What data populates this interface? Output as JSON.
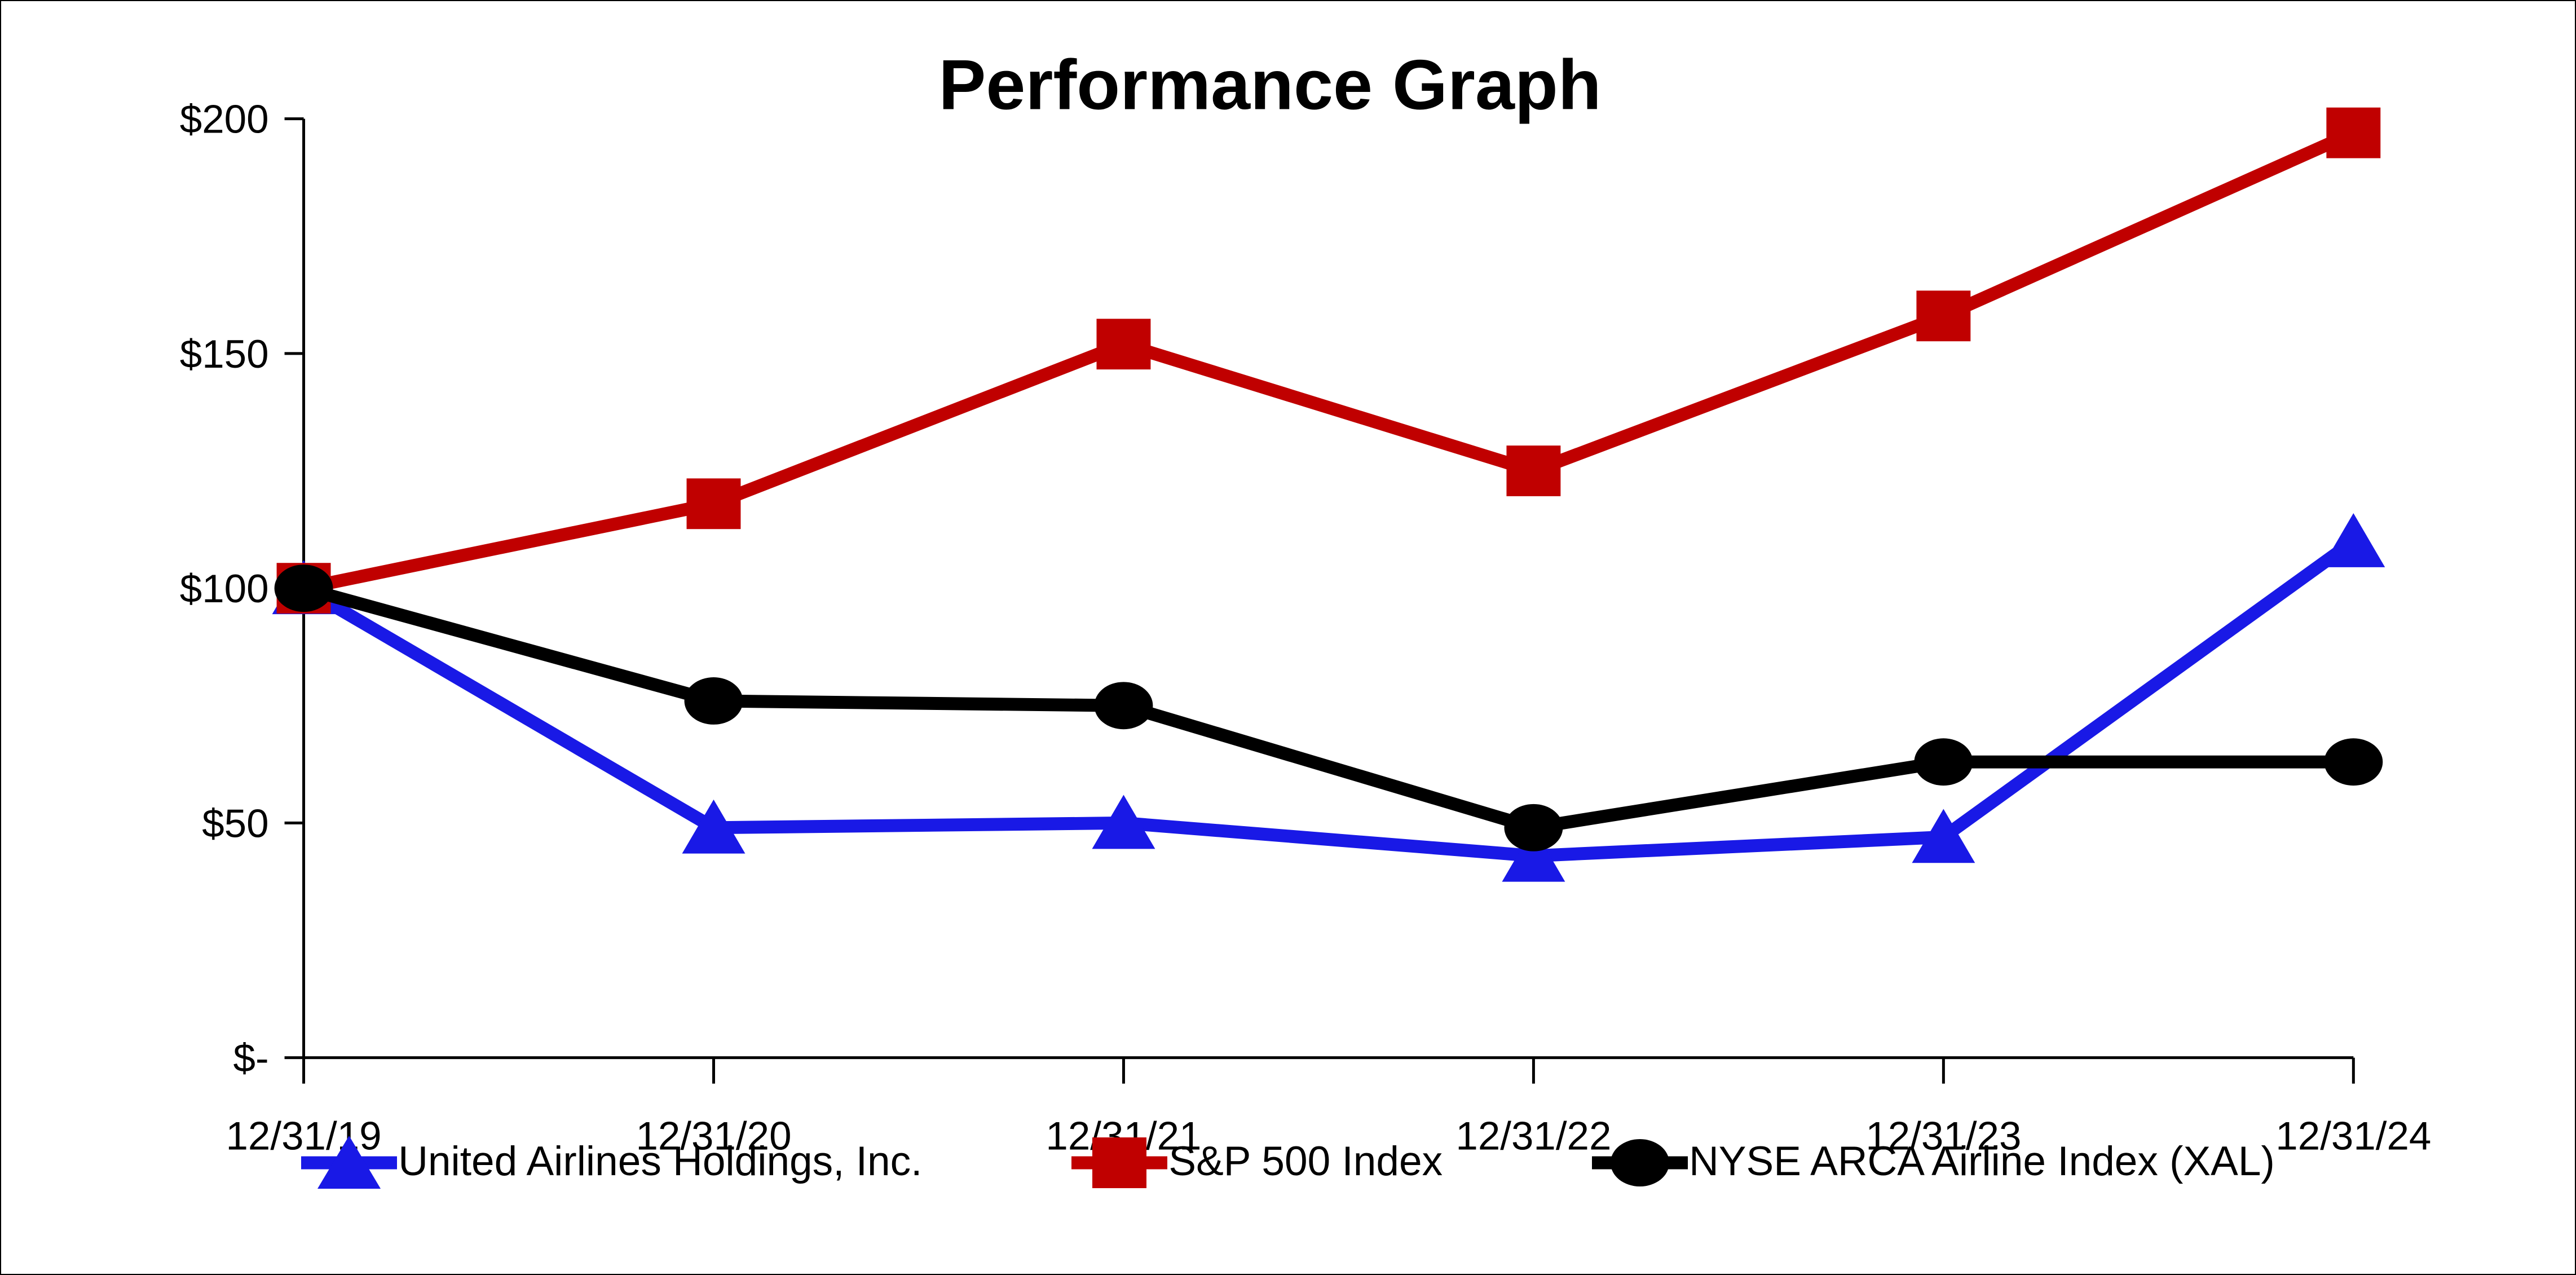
{
  "chart_data": {
    "type": "line",
    "title": "Performance Graph",
    "categories": [
      "12/31/19",
      "12/31/20",
      "12/31/21",
      "12/31/22",
      "12/31/23",
      "12/31/24"
    ],
    "series": [
      {
        "name": "United Airlines Holdings, Inc.",
        "color": "#1919E6",
        "marker": "triangle",
        "values": [
          100,
          49,
          50,
          43,
          47,
          110
        ]
      },
      {
        "name": "S&P 500 Index",
        "color": "#C00000",
        "marker": "square",
        "values": [
          100,
          118,
          152,
          125,
          158,
          197
        ]
      },
      {
        "name": "NYSE ARCA Airline Index (XAL)",
        "color": "#000000",
        "marker": "circle",
        "values": [
          100,
          76,
          75,
          49,
          63,
          63
        ]
      }
    ],
    "y_axis": {
      "range": [
        0,
        200
      ],
      "ticks": [
        {
          "label": "$200",
          "value": 200
        },
        {
          "label": "$150",
          "value": 150
        },
        {
          "label": "$100",
          "value": 100
        },
        {
          "label": "$50",
          "value": 50
        },
        {
          "label": "$-",
          "value": 0
        }
      ]
    },
    "x_axis": {
      "ticks_at_categories": true
    },
    "grid": false,
    "legend_position": "bottom",
    "axis_color": "#000000",
    "background_color": "#FFFFFF"
  }
}
